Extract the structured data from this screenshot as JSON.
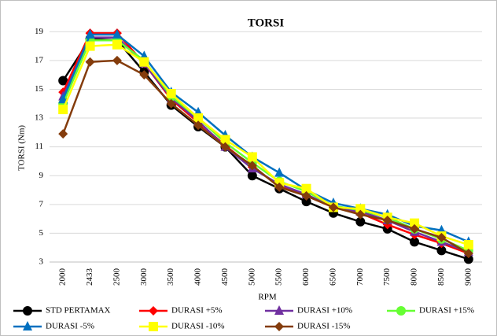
{
  "chart_data": {
    "type": "line",
    "title": "TORSI",
    "xlabel": "RPM",
    "ylabel": "TORSI (Nm)",
    "categories": [
      "2000",
      "2433",
      "2500",
      "3000",
      "3500",
      "4000",
      "4500",
      "5000",
      "5500",
      "6000",
      "6500",
      "7000",
      "7500",
      "8000",
      "8500",
      "9000"
    ],
    "ylim": [
      3,
      20
    ],
    "yticks": [
      3,
      5,
      7,
      9,
      11,
      13,
      15,
      17,
      19
    ],
    "grid": true,
    "legend": "bottom",
    "series": [
      {
        "name": "STD PERTAMAX",
        "color": "#000000",
        "marker": "circle",
        "values": [
          15.6,
          18.5,
          18.4,
          16.2,
          13.9,
          12.4,
          11.0,
          9.0,
          8.1,
          7.2,
          6.4,
          5.8,
          5.3,
          4.4,
          3.8,
          3.2
        ]
      },
      {
        "name": "DURASI +5%",
        "color": "#ff0000",
        "marker": "diamond",
        "values": [
          14.8,
          18.9,
          18.9,
          16.8,
          14.3,
          12.7,
          11.1,
          9.6,
          8.3,
          7.6,
          6.8,
          6.4,
          5.6,
          4.9,
          4.3,
          3.6
        ]
      },
      {
        "name": "DURASI +10%",
        "color": "#7030a0",
        "marker": "triangle",
        "values": [
          14.5,
          18.6,
          18.6,
          16.8,
          14.4,
          12.8,
          11.0,
          9.5,
          8.4,
          7.7,
          6.8,
          6.5,
          5.9,
          5.1,
          4.4,
          3.7
        ]
      },
      {
        "name": "DURASI +15%",
        "color": "#66ff33",
        "marker": "circle",
        "values": [
          14.0,
          18.4,
          18.4,
          17.0,
          14.5,
          13.0,
          11.3,
          9.9,
          8.6,
          7.9,
          6.9,
          6.6,
          6.1,
          5.3,
          4.6,
          3.8
        ]
      },
      {
        "name": "DURASI -5%",
        "color": "#0070c0",
        "marker": "triangle",
        "values": [
          14.3,
          18.8,
          18.8,
          17.3,
          14.8,
          13.4,
          11.8,
          10.3,
          9.2,
          8.0,
          7.1,
          6.7,
          6.3,
          5.5,
          5.2,
          4.4
        ]
      },
      {
        "name": "DURASI -10%",
        "color": "#ffff00",
        "marker": "square",
        "values": [
          13.6,
          18.0,
          18.1,
          16.9,
          14.7,
          13.0,
          11.5,
          10.3,
          8.5,
          8.1,
          6.8,
          6.7,
          6.1,
          5.7,
          4.8,
          4.2
        ]
      },
      {
        "name": "DURASI -15%",
        "color": "#843c0c",
        "marker": "diamond",
        "values": [
          11.9,
          16.9,
          17.0,
          16.0,
          14.0,
          12.5,
          11.0,
          9.7,
          8.2,
          7.6,
          6.8,
          6.3,
          5.9,
          5.3,
          4.7,
          3.6
        ]
      }
    ]
  }
}
